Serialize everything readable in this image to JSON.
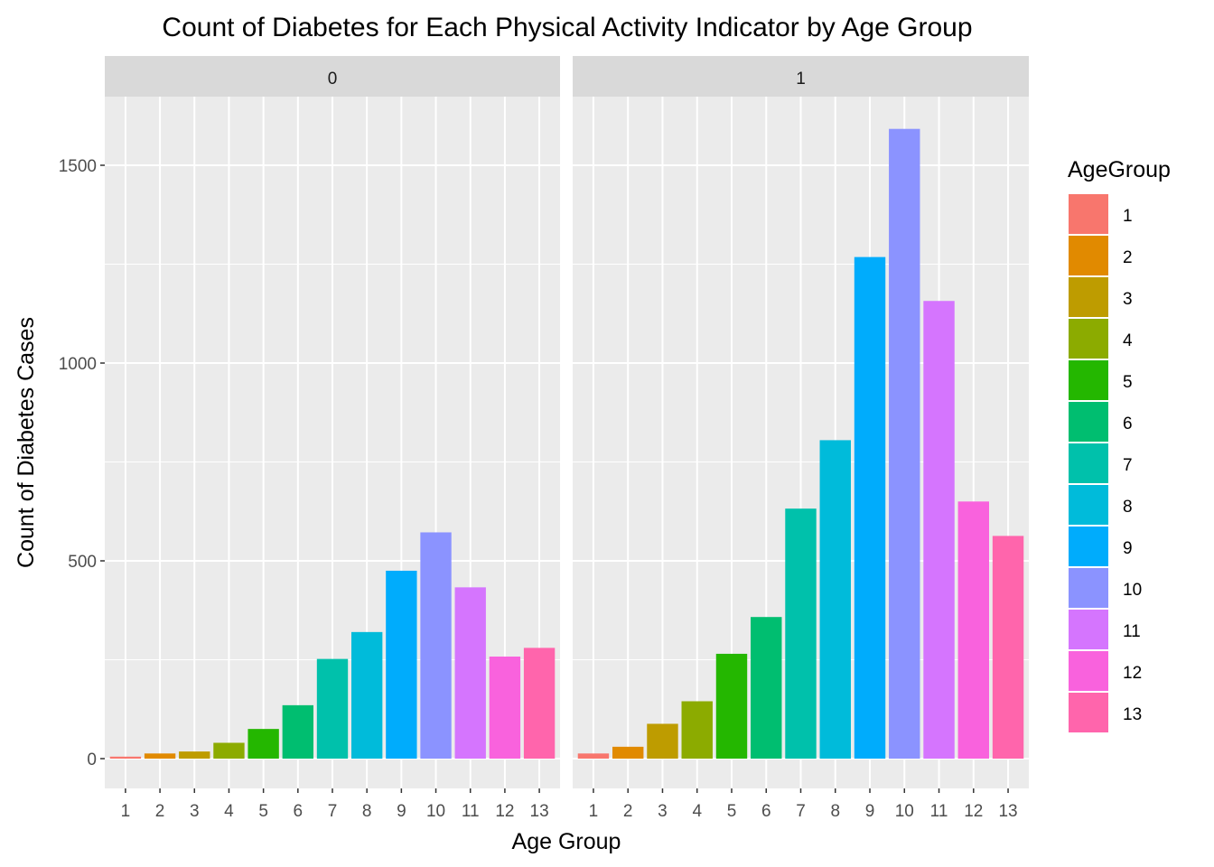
{
  "chart_data": {
    "type": "bar",
    "title": "Count of Diabetes for Each Physical Activity Indicator by Age Group",
    "xlabel": "Age Group",
    "ylabel": "Count of Diabetes Cases",
    "categories": [
      "1",
      "2",
      "3",
      "4",
      "5",
      "6",
      "7",
      "8",
      "9",
      "10",
      "11",
      "12",
      "13"
    ],
    "ylim": [
      -75,
      1700
    ],
    "yticks": [
      0,
      500,
      1000,
      1500
    ],
    "grid": true,
    "facets": [
      {
        "label": "0",
        "values": [
          5,
          13,
          18,
          40,
          75,
          135,
          252,
          320,
          475,
          572,
          433,
          258,
          280
        ]
      },
      {
        "label": "1",
        "values": [
          13,
          30,
          88,
          145,
          265,
          358,
          632,
          805,
          1268,
          1592,
          1157,
          650,
          563
        ]
      }
    ],
    "legend": {
      "title": "AgeGroup",
      "position": "right",
      "items": [
        "1",
        "2",
        "3",
        "4",
        "5",
        "6",
        "7",
        "8",
        "9",
        "10",
        "11",
        "12",
        "13"
      ]
    },
    "colors": [
      "#F8766D",
      "#E18A00",
      "#BE9C00",
      "#8CAB00",
      "#24B700",
      "#00BE70",
      "#00C1AB",
      "#00BBDA",
      "#00ACFC",
      "#8B93FF",
      "#D575FE",
      "#F962DD",
      "#FF65AC"
    ]
  }
}
